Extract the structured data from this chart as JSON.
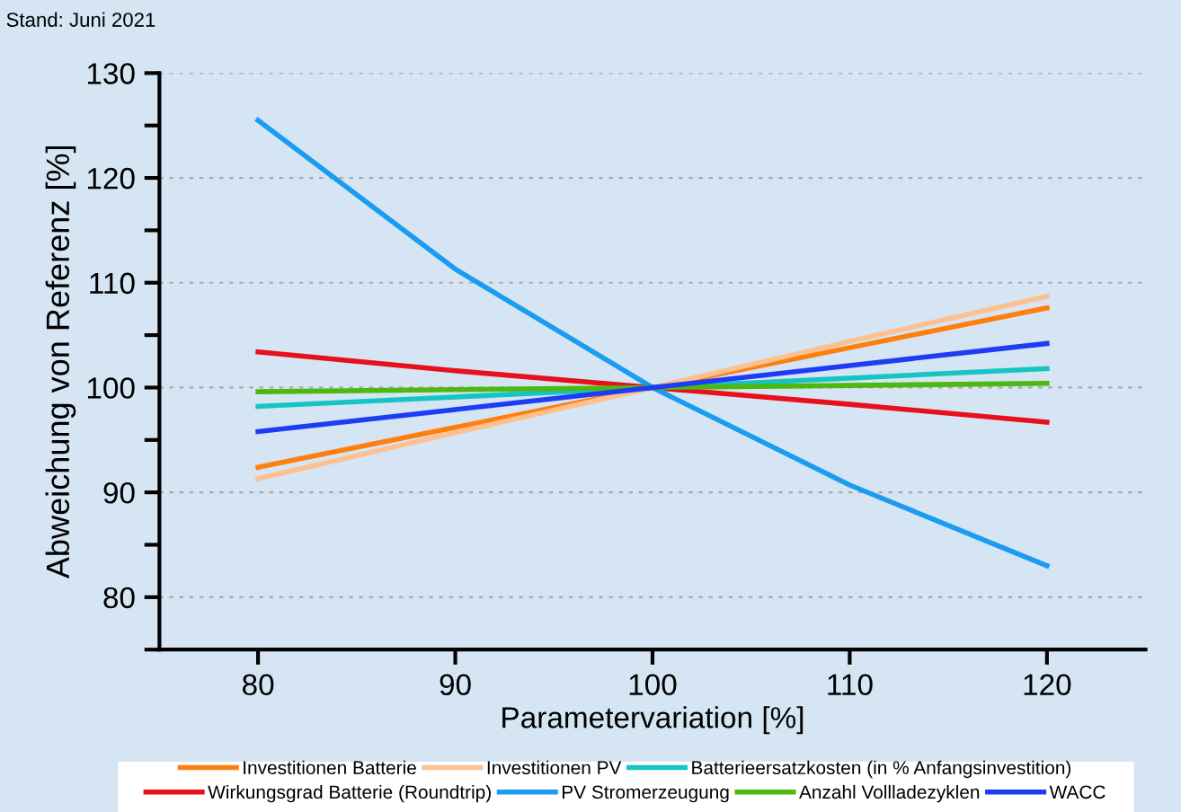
{
  "chart_data": {
    "type": "line",
    "xlabel": "Parametervariation [%]",
    "ylabel": "Abweichung von Referenz [%]",
    "annotations": [
      "Stand: Juni 2021"
    ],
    "x": [
      80,
      90,
      100,
      110,
      120
    ],
    "series": [
      {
        "name": "Investitionen Batterie",
        "color": "#ff7f0e",
        "values": [
          92.4,
          96.2,
          100,
          103.8,
          107.6
        ]
      },
      {
        "name": "Investitionen PV",
        "color": "#fdc08e",
        "values": [
          91.3,
          95.7,
          100,
          104.4,
          108.7
        ]
      },
      {
        "name": "Batterieersatzkosten (in % Anfangsinvestition)",
        "color": "#17c4c4",
        "values": [
          98.2,
          99.1,
          100,
          100.9,
          101.8
        ]
      },
      {
        "name": "Wirkungsgrad Batterie (Roundtrip)",
        "color": "#e8101c",
        "values": [
          103.4,
          101.6,
          100,
          98.4,
          96.7
        ]
      },
      {
        "name": "PV Stromerzeugung",
        "color": "#1a9cf0",
        "values": [
          125.5,
          111.3,
          100,
          90.7,
          83.0
        ]
      },
      {
        "name": "Anzahl Vollladezyklen",
        "color": "#4cb810",
        "values": [
          99.6,
          99.8,
          100,
          100.2,
          100.4
        ]
      },
      {
        "name": "WACC",
        "color": "#1f3cf5",
        "values": [
          95.8,
          97.9,
          100,
          102.1,
          104.2
        ]
      }
    ],
    "xlim": [
      75,
      125
    ],
    "xticks": [
      80,
      90,
      100,
      110,
      120
    ],
    "ylim": [
      75,
      130
    ],
    "yticks": [
      {
        "value": 75,
        "label": null
      },
      80,
      {
        "value": 85,
        "label": null
      },
      90,
      {
        "value": 95,
        "label": null
      },
      100,
      {
        "value": 105,
        "label": null
      },
      110,
      {
        "value": 115,
        "label": null
      },
      120,
      {
        "value": 125,
        "label": null
      },
      130
    ],
    "grid": "y",
    "legend": "bottom",
    "marker": "none",
    "line_style": "solid"
  }
}
